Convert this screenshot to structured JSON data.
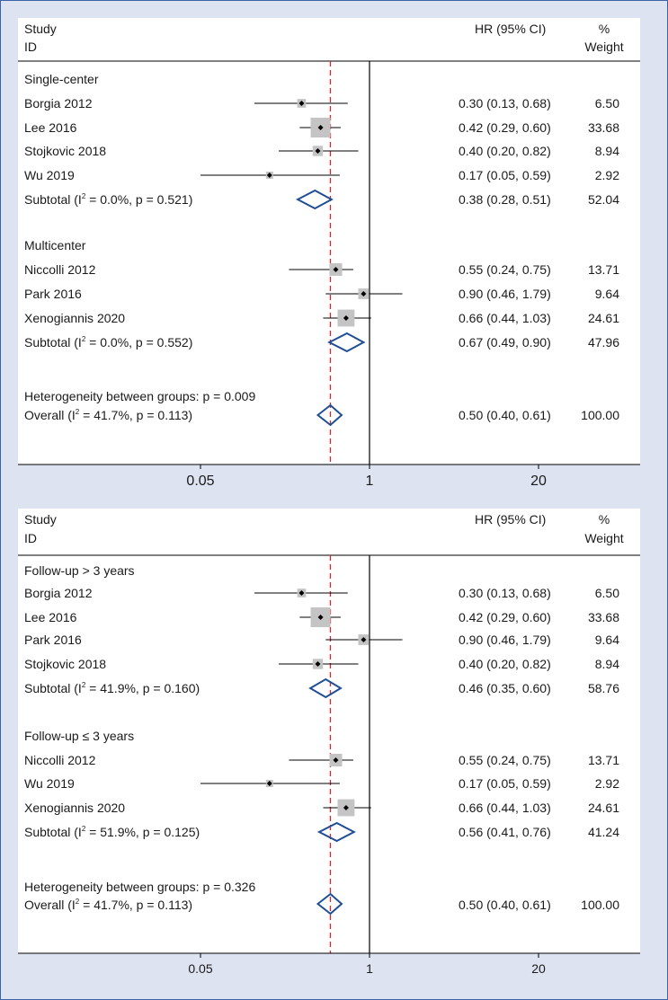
{
  "chart_data": [
    {
      "type": "forest",
      "header": {
        "study": "Study",
        "id": "ID",
        "hr": "HR (95% CI)",
        "pct": "%",
        "weight": "Weight"
      },
      "x_scale": "log",
      "xlim": [
        0.0085,
        110
      ],
      "ticks": [
        0.05,
        1,
        20
      ],
      "tick_labels": [
        "0.05",
        "1",
        "20"
      ],
      "reference_line": 1,
      "overall_line": 0.5,
      "colors": {
        "box": "#c4c4c4",
        "diamond": "#1f4e96",
        "dashed": "#e0222a",
        "panel": "#ffffff",
        "frame": "#dde3f0"
      },
      "groups": [
        {
          "label": "Single-center",
          "studies": [
            {
              "name": "Borgia 2012",
              "hr": 0.3,
              "lo": 0.13,
              "hi": 0.68,
              "weight": 6.5,
              "ci_text": "0.30 (0.13, 0.68)",
              "weight_text": "6.50"
            },
            {
              "name": "Lee 2016",
              "hr": 0.42,
              "lo": 0.29,
              "hi": 0.6,
              "weight": 33.68,
              "ci_text": "0.42 (0.29, 0.60)",
              "weight_text": "33.68"
            },
            {
              "name": "Stojkovic 2018",
              "hr": 0.4,
              "lo": 0.2,
              "hi": 0.82,
              "weight": 8.94,
              "ci_text": "0.40 (0.20, 0.82)",
              "weight_text": "8.94"
            },
            {
              "name": "Wu 2019",
              "hr": 0.17,
              "lo": 0.05,
              "hi": 0.59,
              "weight": 2.92,
              "ci_text": "0.17 (0.05, 0.59)",
              "weight_text": "2.92"
            }
          ],
          "subtotal": {
            "prefix": "Subtotal (I",
            "sup": "2",
            "suffix": " = 0.0%, p = 0.521)",
            "hr": 0.38,
            "lo": 0.28,
            "hi": 0.51,
            "ci_text": "0.38 (0.28, 0.51)",
            "weight_text": "52.04"
          }
        },
        {
          "label": "Multicenter",
          "studies": [
            {
              "name": "Niccolli 2012",
              "hr": 0.55,
              "lo": 0.24,
              "hi": 0.75,
              "weight": 13.71,
              "ci_text": "0.55 (0.24, 0.75)",
              "weight_text": "13.71"
            },
            {
              "name": "Park 2016",
              "hr": 0.9,
              "lo": 0.46,
              "hi": 1.79,
              "weight": 9.64,
              "ci_text": "0.90 (0.46, 1.79)",
              "weight_text": "9.64"
            },
            {
              "name": "Xenogiannis 2020",
              "hr": 0.66,
              "lo": 0.44,
              "hi": 1.03,
              "weight": 24.61,
              "ci_text": "0.66 (0.44, 1.03)",
              "weight_text": "24.61"
            }
          ],
          "subtotal": {
            "prefix": "Subtotal (I",
            "sup": "2",
            "suffix": " = 0.0%, p = 0.552)",
            "hr": 0.67,
            "lo": 0.49,
            "hi": 0.9,
            "ci_text": "0.67 (0.49, 0.90)",
            "weight_text": "47.96"
          }
        }
      ],
      "heterogeneity": "Heterogeneity between groups: p = 0.009",
      "overall": {
        "prefix": "Overall (I",
        "sup": "2",
        "suffix": " = 41.7%, p = 0.113)",
        "hr": 0.5,
        "lo": 0.4,
        "hi": 0.61,
        "ci_text": "0.50 (0.40, 0.61)",
        "weight_text": "100.00"
      }
    },
    {
      "type": "forest",
      "header": {
        "study": "Study",
        "id": "ID",
        "hr": "HR (95% CI)",
        "pct": "%",
        "weight": "Weight"
      },
      "x_scale": "log",
      "xlim": [
        0.0085,
        110
      ],
      "ticks": [
        0.05,
        1,
        20
      ],
      "tick_labels": [
        "0.05",
        "1",
        "20"
      ],
      "reference_line": 1,
      "overall_line": 0.5,
      "colors": {
        "box": "#c4c4c4",
        "diamond": "#1f4e96",
        "dashed": "#e0222a",
        "panel": "#ffffff",
        "frame": "#dde3f0"
      },
      "groups": [
        {
          "label": "Follow-up > 3 years",
          "studies": [
            {
              "name": "Borgia 2012",
              "hr": 0.3,
              "lo": 0.13,
              "hi": 0.68,
              "weight": 6.5,
              "ci_text": "0.30 (0.13, 0.68)",
              "weight_text": "6.50"
            },
            {
              "name": "Lee 2016",
              "hr": 0.42,
              "lo": 0.29,
              "hi": 0.6,
              "weight": 33.68,
              "ci_text": "0.42 (0.29, 0.60)",
              "weight_text": "33.68"
            },
            {
              "name": "Park 2016",
              "hr": 0.9,
              "lo": 0.46,
              "hi": 1.79,
              "weight": 9.64,
              "ci_text": "0.90 (0.46, 1.79)",
              "weight_text": "9.64"
            },
            {
              "name": "Stojkovic 2018",
              "hr": 0.4,
              "lo": 0.2,
              "hi": 0.82,
              "weight": 8.94,
              "ci_text": "0.40 (0.20, 0.82)",
              "weight_text": "8.94"
            }
          ],
          "subtotal": {
            "prefix": "Subtotal (I",
            "sup": "2",
            "suffix": " = 41.9%, p = 0.160)",
            "hr": 0.46,
            "lo": 0.35,
            "hi": 0.6,
            "ci_text": "0.46 (0.35, 0.60)",
            "weight_text": "58.76"
          }
        },
        {
          "label": "Follow-up ≤ 3 years",
          "studies": [
            {
              "name": "Niccolli 2012",
              "hr": 0.55,
              "lo": 0.24,
              "hi": 0.75,
              "weight": 13.71,
              "ci_text": "0.55 (0.24, 0.75)",
              "weight_text": "13.71"
            },
            {
              "name": "Wu 2019",
              "hr": 0.17,
              "lo": 0.05,
              "hi": 0.59,
              "weight": 2.92,
              "ci_text": "0.17 (0.05, 0.59)",
              "weight_text": "2.92"
            },
            {
              "name": "Xenogiannis 2020",
              "hr": 0.66,
              "lo": 0.44,
              "hi": 1.03,
              "weight": 24.61,
              "ci_text": "0.66 (0.44, 1.03)",
              "weight_text": "24.61"
            }
          ],
          "subtotal": {
            "prefix": "Subtotal (I",
            "sup": "2",
            "suffix": " = 51.9%, p = 0.125)",
            "hr": 0.56,
            "lo": 0.41,
            "hi": 0.76,
            "ci_text": "0.56 (0.41, 0.76)",
            "weight_text": "41.24"
          }
        }
      ],
      "heterogeneity": "Heterogeneity between groups: p = 0.326",
      "overall": {
        "prefix": "Overall (I",
        "sup": "2",
        "suffix": " = 41.7%, p = 0.113)",
        "hr": 0.5,
        "lo": 0.4,
        "hi": 0.61,
        "ci_text": "0.50 (0.40, 0.61)",
        "weight_text": "100.00"
      }
    }
  ]
}
